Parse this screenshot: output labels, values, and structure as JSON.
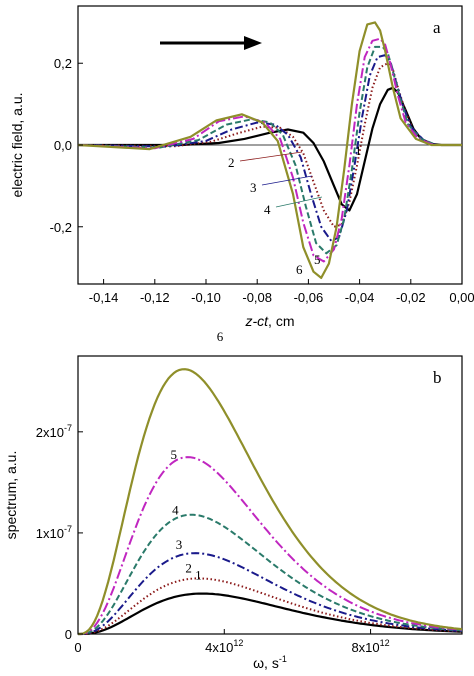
{
  "chart_data": [
    {
      "type": "line",
      "panel_label": "a",
      "xlabel_italic": "z-ct",
      "xlabel_unit": ", cm",
      "ylabel": "electric field, a.u.",
      "xlim": [
        -0.15,
        0.0
      ],
      "ylim": [
        -0.34,
        0.34
      ],
      "xticks": [
        -0.14,
        -0.12,
        -0.1,
        -0.08,
        -0.06,
        -0.04,
        -0.02,
        0.0
      ],
      "xtick_labels": [
        "-0,14",
        "-0,12",
        "-0,10",
        "-0,08",
        "-0,06",
        "-0,04",
        "-0,02",
        "0,00"
      ],
      "yticks": [
        -0.2,
        0.0,
        0.2
      ],
      "ytick_labels": [
        "-0,2",
        "0,0",
        "0,2"
      ],
      "zero_line": true,
      "arrow": "right",
      "series": [
        {
          "name": "1",
          "color": "#000000",
          "dash": "solid",
          "x": [
            -0.15,
            -0.11,
            -0.095,
            -0.085,
            -0.075,
            -0.068,
            -0.062,
            -0.058,
            -0.054,
            -0.05,
            -0.047,
            -0.044,
            -0.041,
            -0.038,
            -0.035,
            -0.032,
            -0.029,
            -0.027,
            -0.025,
            -0.022,
            -0.019,
            -0.016,
            -0.012,
            -0.008,
            0.0
          ],
          "y": [
            0.0,
            0.0,
            0.005,
            0.015,
            0.03,
            0.038,
            0.03,
            0.005,
            -0.04,
            -0.1,
            -0.145,
            -0.16,
            -0.12,
            -0.04,
            0.04,
            0.1,
            0.135,
            0.14,
            0.128,
            0.085,
            0.04,
            0.015,
            0.003,
            0.0,
            0.0
          ]
        },
        {
          "name": "2",
          "color": "#8b1a1a",
          "dash": "dot",
          "x": [
            -0.15,
            -0.112,
            -0.098,
            -0.088,
            -0.078,
            -0.071,
            -0.066,
            -0.062,
            -0.058,
            -0.054,
            -0.05,
            -0.047,
            -0.044,
            -0.041,
            -0.038,
            -0.035,
            -0.032,
            -0.029,
            -0.027,
            -0.025,
            -0.022,
            -0.019,
            -0.015,
            -0.01,
            0.0
          ],
          "y": [
            0.0,
            -0.003,
            0.008,
            0.028,
            0.045,
            0.042,
            0.02,
            -0.02,
            -0.09,
            -0.16,
            -0.2,
            -0.195,
            -0.14,
            -0.05,
            0.05,
            0.14,
            0.19,
            0.2,
            0.185,
            0.14,
            0.08,
            0.035,
            0.01,
            0.0,
            0.0
          ]
        },
        {
          "name": "3",
          "color": "#1a1a8b",
          "dash": "dashdot",
          "x": [
            -0.15,
            -0.115,
            -0.1,
            -0.09,
            -0.08,
            -0.073,
            -0.068,
            -0.063,
            -0.059,
            -0.055,
            -0.051,
            -0.048,
            -0.045,
            -0.042,
            -0.039,
            -0.036,
            -0.033,
            -0.03,
            -0.028,
            -0.026,
            -0.023,
            -0.02,
            -0.015,
            -0.01,
            0.0
          ],
          "y": [
            0.0,
            -0.004,
            0.01,
            0.038,
            0.055,
            0.05,
            0.025,
            -0.03,
            -0.12,
            -0.2,
            -0.235,
            -0.225,
            -0.16,
            -0.05,
            0.07,
            0.17,
            0.215,
            0.22,
            0.205,
            0.16,
            0.095,
            0.045,
            0.012,
            0.0,
            0.0
          ]
        },
        {
          "name": "4",
          "color": "#2a7a6a",
          "dash": "dash",
          "x": [
            -0.15,
            -0.118,
            -0.103,
            -0.092,
            -0.082,
            -0.075,
            -0.07,
            -0.065,
            -0.061,
            -0.057,
            -0.053,
            -0.049,
            -0.046,
            -0.043,
            -0.04,
            -0.037,
            -0.034,
            -0.031,
            -0.029,
            -0.027,
            -0.024,
            -0.021,
            -0.016,
            -0.01,
            0.0
          ],
          "y": [
            0.0,
            -0.006,
            0.012,
            0.05,
            0.063,
            0.055,
            0.025,
            -0.05,
            -0.15,
            -0.24,
            -0.265,
            -0.245,
            -0.18,
            -0.06,
            0.08,
            0.19,
            0.24,
            0.24,
            0.225,
            0.18,
            0.11,
            0.05,
            0.015,
            0.0,
            0.0
          ]
        },
        {
          "name": "5",
          "color": "#c026c0",
          "dash": "dashdotlong",
          "x": [
            -0.15,
            -0.12,
            -0.105,
            -0.095,
            -0.085,
            -0.077,
            -0.071,
            -0.066,
            -0.062,
            -0.058,
            -0.054,
            -0.05,
            -0.047,
            -0.044,
            -0.041,
            -0.038,
            -0.035,
            -0.032,
            -0.03,
            -0.028,
            -0.025,
            -0.022,
            -0.017,
            -0.011,
            0.0
          ],
          "y": [
            0.0,
            -0.008,
            0.015,
            0.058,
            0.07,
            0.055,
            0.015,
            -0.08,
            -0.19,
            -0.27,
            -0.285,
            -0.255,
            -0.18,
            -0.05,
            0.1,
            0.215,
            0.255,
            0.26,
            0.245,
            0.2,
            0.12,
            0.055,
            0.015,
            0.0,
            0.0
          ]
        },
        {
          "name": "6",
          "color": "#8f8f2a",
          "dash": "solid",
          "x": [
            -0.15,
            -0.122,
            -0.106,
            -0.096,
            -0.086,
            -0.078,
            -0.072,
            -0.066,
            -0.062,
            -0.058,
            -0.055,
            -0.052,
            -0.049,
            -0.046,
            -0.043,
            -0.04,
            -0.037,
            -0.034,
            -0.032,
            -0.03,
            -0.027,
            -0.024,
            -0.018,
            -0.012,
            0.0
          ],
          "y": [
            0.0,
            -0.01,
            0.02,
            0.06,
            0.075,
            0.055,
            0.01,
            -0.12,
            -0.25,
            -0.31,
            -0.325,
            -0.29,
            -0.2,
            -0.06,
            0.1,
            0.23,
            0.295,
            0.3,
            0.28,
            0.23,
            0.14,
            0.065,
            0.015,
            0.0,
            0.0
          ]
        }
      ]
    },
    {
      "type": "line",
      "panel_label": "b",
      "xlabel_main": "ω, s",
      "xlabel_sup": "-1",
      "ylabel": "spectrum, a.u.",
      "xlim": [
        0,
        10500000000000.0
      ],
      "ylim": [
        0,
        2.75e-07
      ],
      "xticks": [
        0,
        4000000000000.0,
        8000000000000.0
      ],
      "xtick_labels": [
        {
          "main": "0",
          "sup": ""
        },
        {
          "main": "4x10",
          "sup": "12"
        },
        {
          "main": "8x10",
          "sup": "12"
        }
      ],
      "yticks": [
        0,
        1e-07,
        2e-07
      ],
      "ytick_labels": [
        {
          "main": "0",
          "sup": ""
        },
        {
          "main": "1x10",
          "sup": "-7"
        },
        {
          "main": "2x10",
          "sup": "-7"
        }
      ],
      "series": [
        {
          "name": "1",
          "color": "#000000",
          "dash": "solid",
          "peak_x": 3400000000000.0,
          "peak_y": 4e-08
        },
        {
          "name": "2",
          "color": "#8b1a1a",
          "dash": "dot",
          "peak_x": 3300000000000.0,
          "peak_y": 5.5e-08
        },
        {
          "name": "3",
          "color": "#1a1a8b",
          "dash": "dashdot",
          "peak_x": 3200000000000.0,
          "peak_y": 8e-08
        },
        {
          "name": "4",
          "color": "#2a7a6a",
          "dash": "dash",
          "peak_x": 3100000000000.0,
          "peak_y": 1.18e-07
        },
        {
          "name": "5",
          "color": "#c026c0",
          "dash": "dashdotlong",
          "peak_x": 3000000000000.0,
          "peak_y": 1.75e-07
        },
        {
          "name": "6",
          "color": "#8f8f2a",
          "dash": "solid",
          "peak_x": 2900000000000.0,
          "peak_y": 2.62e-07
        }
      ]
    }
  ]
}
